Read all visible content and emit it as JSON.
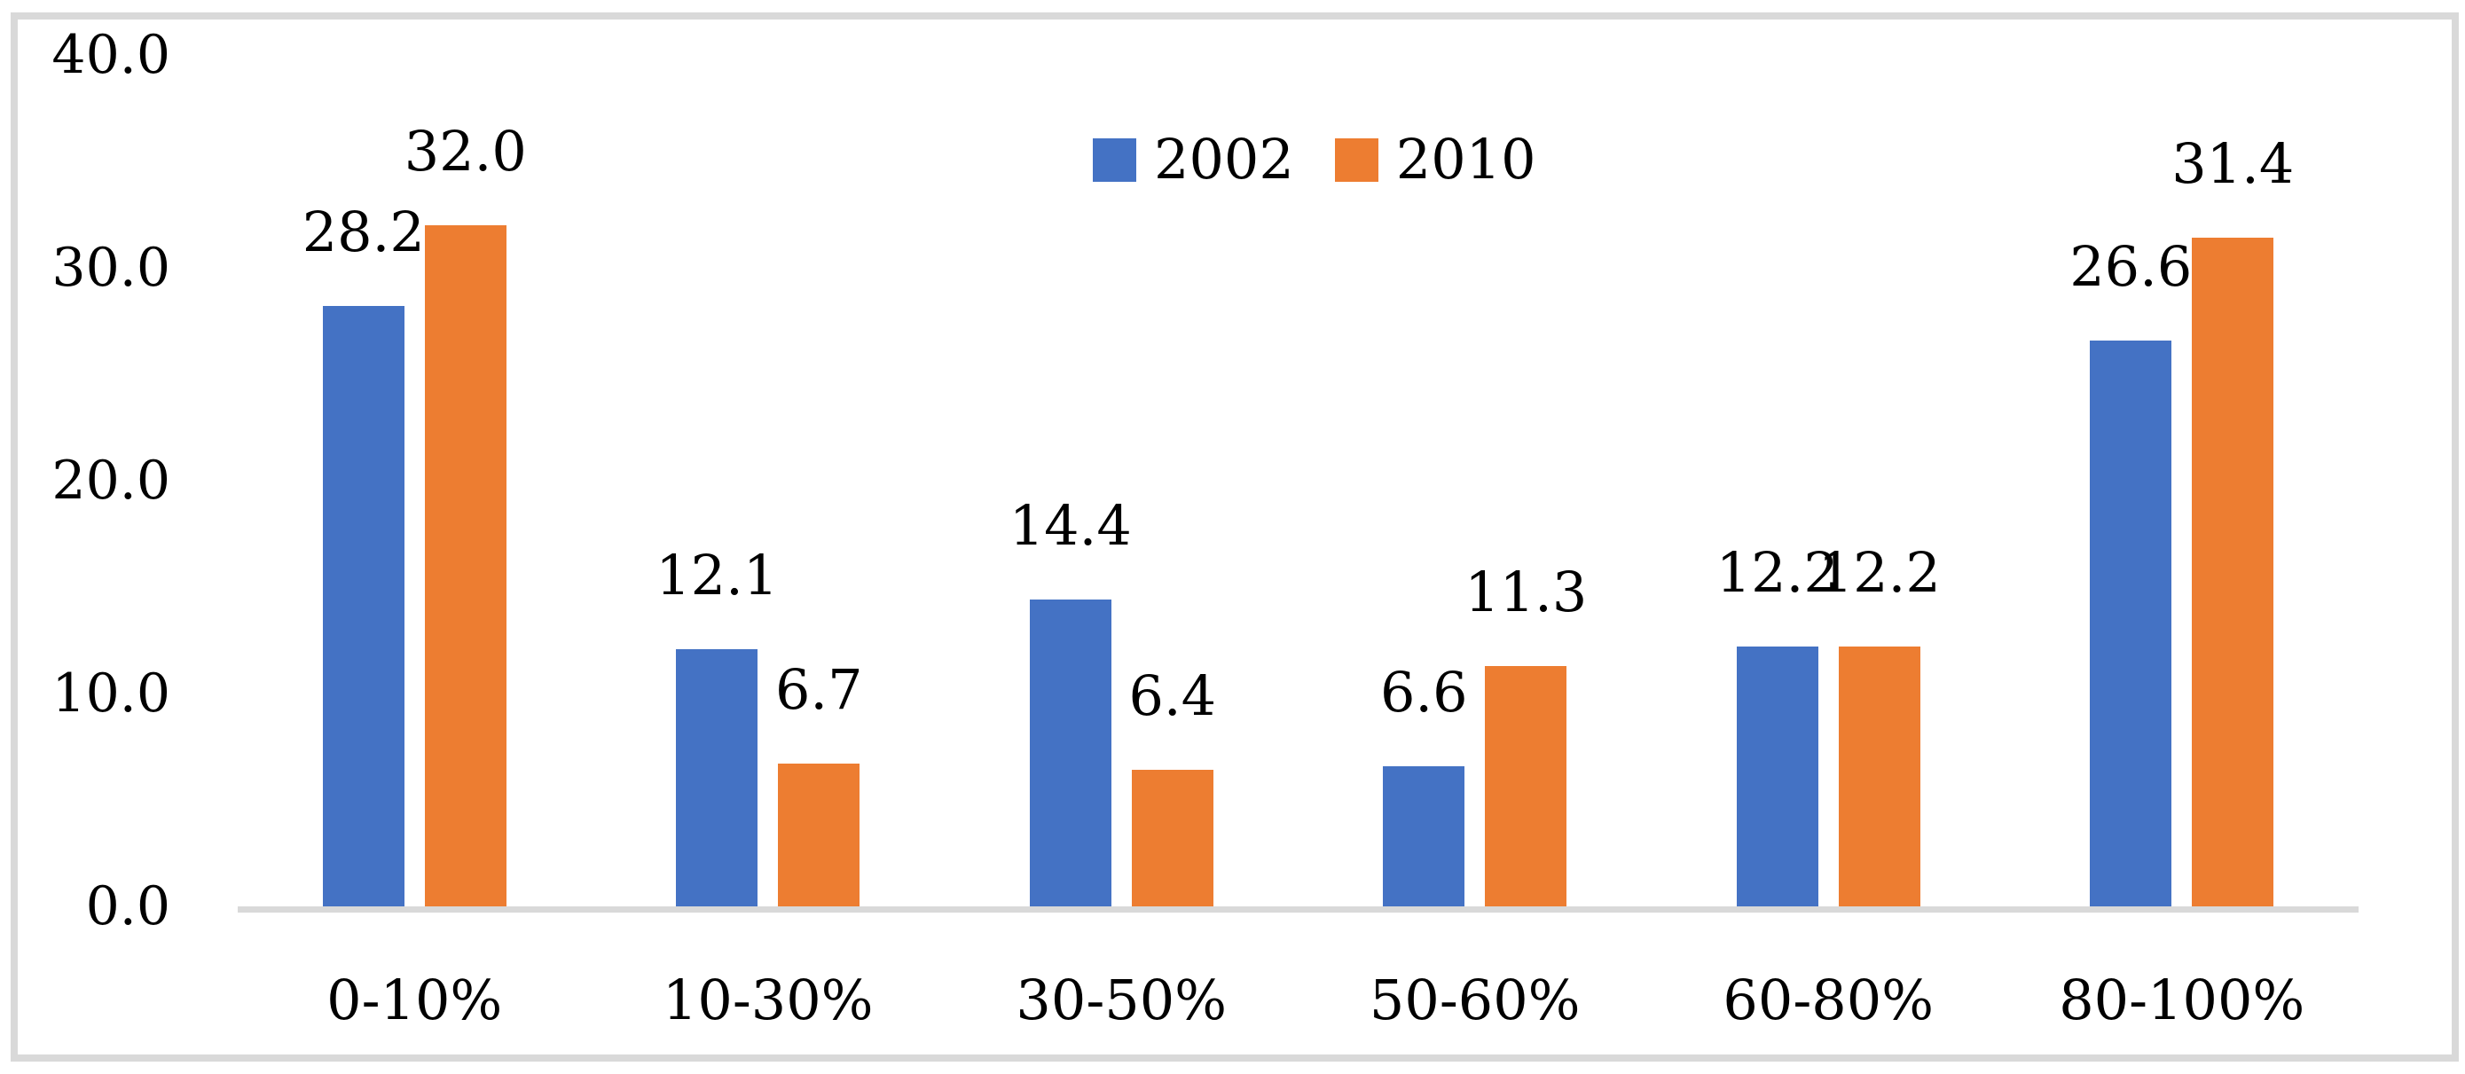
{
  "chart_data": {
    "type": "bar",
    "title": "",
    "xlabel": "",
    "ylabel": "",
    "categories": [
      "0-10%",
      "10-30%",
      "30-50%",
      "50-60%",
      "60-80%",
      "80-100%"
    ],
    "series": [
      {
        "name": "2002",
        "color": "#4472C4",
        "values": [
          28.2,
          12.1,
          14.4,
          6.6,
          12.2,
          26.6
        ],
        "labels": [
          "28.2",
          "12.1",
          "14.4",
          "6.6",
          "12.2",
          "26.6"
        ]
      },
      {
        "name": "2010",
        "color": "#ED7D31",
        "values": [
          32.0,
          6.7,
          6.4,
          11.3,
          12.2,
          31.4
        ],
        "labels": [
          "32.0",
          "6.7",
          "6.4",
          "11.3",
          "12.2",
          "31.4"
        ]
      }
    ],
    "ylim": [
      0,
      40
    ],
    "y_ticks": [
      {
        "label": "0.0",
        "value": 0
      },
      {
        "label": "10.0",
        "value": 10
      },
      {
        "label": "20.0",
        "value": 20
      },
      {
        "label": "30.0",
        "value": 30
      },
      {
        "label": "40.0",
        "value": 40
      }
    ],
    "grid": false,
    "legend_position": "top-center",
    "colors": {
      "axis_line": "#d9d9d9",
      "frame_border": "#d9d9d9",
      "text": "#000000",
      "background": "#ffffff"
    }
  }
}
